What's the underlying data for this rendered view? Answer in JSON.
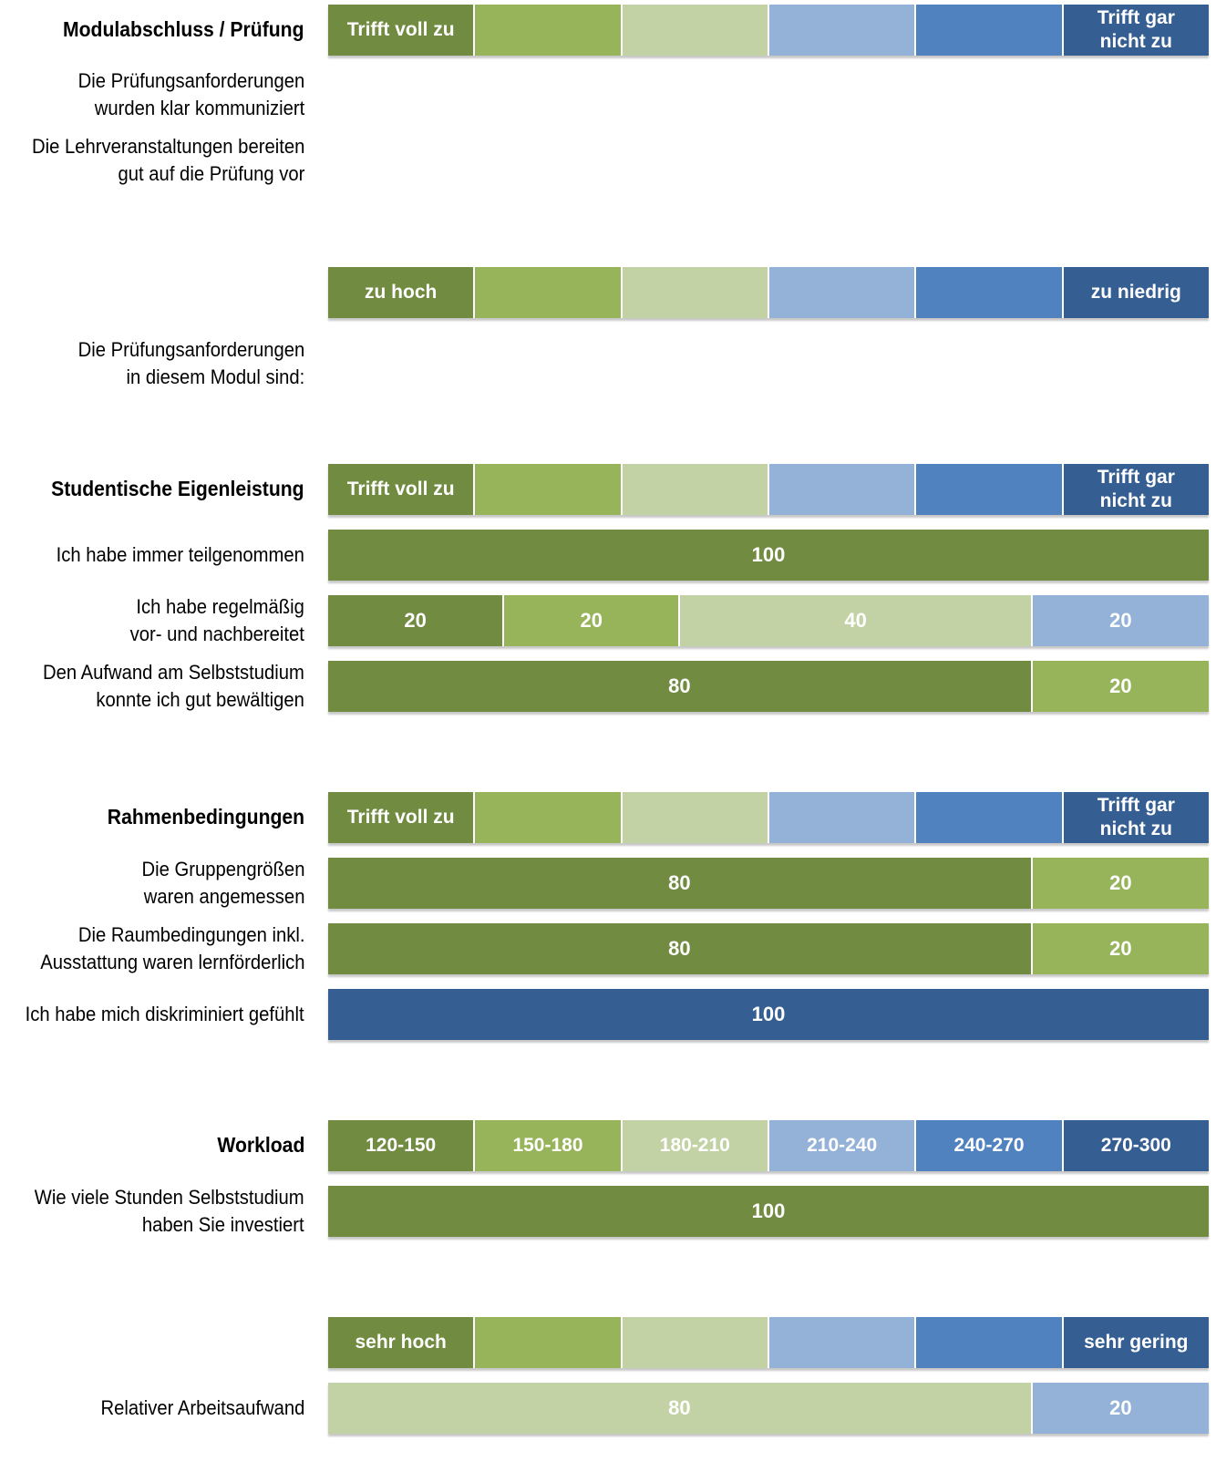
{
  "colors": [
    "#718B40",
    "#97B45B",
    "#C2D2A4",
    "#94B2D8",
    "#4F82BE",
    "#355F92"
  ],
  "chart_data": {
    "type": "bar",
    "stacked": true,
    "orientation": "horizontal",
    "unit": "%",
    "sections": [
      {
        "title": "Modulabschluss / Prüfung",
        "scale": [
          "Trifft voll zu",
          "",
          "",
          "",
          "",
          "Trifft gar nicht zu"
        ],
        "rows": [
          {
            "label": "Die Prüfungsanforderungen wurden klar kommuniziert",
            "values": []
          },
          {
            "label": "Die Lehrveranstaltungen bereiten gut auf die Prüfung vor",
            "values": []
          }
        ]
      },
      {
        "title": "",
        "scale": [
          "zu hoch",
          "",
          "",
          "",
          "",
          "zu niedrig"
        ],
        "rows": [
          {
            "label": "Die Prüfungsanforderungen in diesem Modul sind:",
            "values": []
          }
        ]
      },
      {
        "title": "Studentische Eigenleistung",
        "scale": [
          "Trifft voll zu",
          "",
          "",
          "",
          "",
          "Trifft gar nicht zu"
        ],
        "rows": [
          {
            "label": "Ich habe immer teilgenommen",
            "values": [
              100,
              0,
              0,
              0,
              0,
              0
            ]
          },
          {
            "label": "Ich habe regelmäßig vor- und nachbereitet",
            "values": [
              20,
              20,
              40,
              20,
              0,
              0
            ]
          },
          {
            "label": "Den Aufwand am Selbststudium konnte ich gut bewältigen",
            "values": [
              80,
              20,
              0,
              0,
              0,
              0
            ]
          }
        ]
      },
      {
        "title": "Rahmenbedingungen",
        "scale": [
          "Trifft voll zu",
          "",
          "",
          "",
          "",
          "Trifft gar nicht zu"
        ],
        "rows": [
          {
            "label": "Die Gruppengrößen waren angemessen",
            "values": [
              80,
              20,
              0,
              0,
              0,
              0
            ]
          },
          {
            "label": "Die Raumbedingungen inkl. Ausstattung waren lernförderlich",
            "values": [
              80,
              20,
              0,
              0,
              0,
              0
            ]
          },
          {
            "label": "Ich habe mich diskriminiert gefühlt",
            "values": [
              0,
              0,
              0,
              0,
              0,
              100
            ]
          }
        ]
      },
      {
        "title": "Workload",
        "scale": [
          "120-150",
          "150-180",
          "180-210",
          "210-240",
          "240-270",
          "270-300"
        ],
        "rows": [
          {
            "label": "Wie viele Stunden Selbststudium haben Sie investiert",
            "values": [
              100,
              0,
              0,
              0,
              0,
              0
            ]
          }
        ]
      },
      {
        "title": "",
        "scale": [
          "sehr hoch",
          "",
          "",
          "",
          "",
          "sehr gering"
        ],
        "rows": [
          {
            "label": "Relativer Arbeitsaufwand",
            "values": [
              0,
              0,
              80,
              20,
              0,
              0
            ]
          }
        ]
      }
    ]
  }
}
